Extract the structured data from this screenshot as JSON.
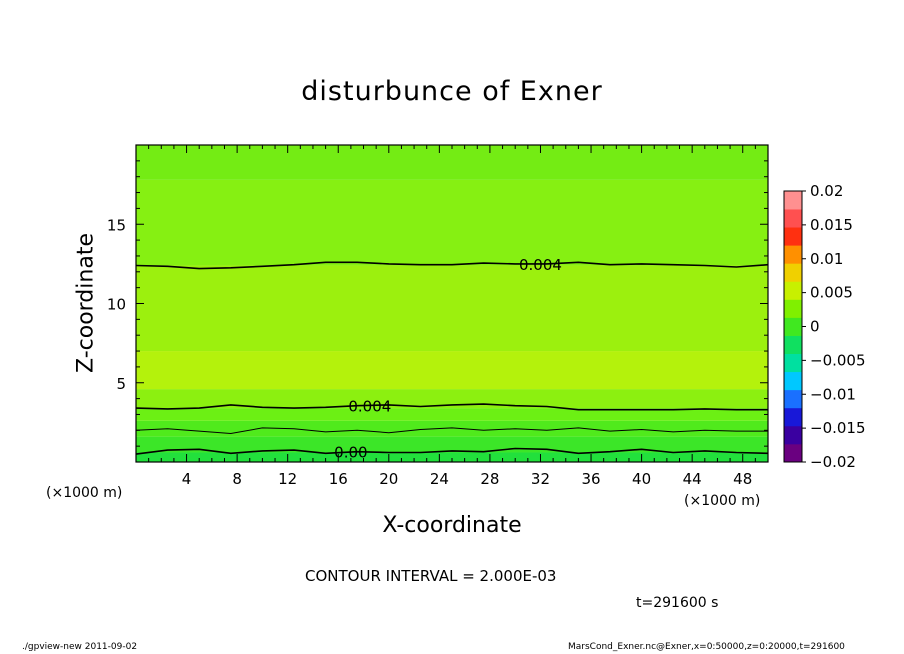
{
  "chart_data": {
    "type": "heatmap",
    "title": "disturbunce of Exner",
    "xlabel": "X-coordinate",
    "ylabel": "Z-coordinate",
    "x_unit": "(×1000 m)",
    "y_unit": "(×1000 m)",
    "xlim": [
      0,
      50
    ],
    "ylim": [
      0,
      20
    ],
    "x_ticks": [
      4,
      8,
      12,
      16,
      20,
      24,
      28,
      32,
      36,
      40,
      44,
      48
    ],
    "y_ticks": [
      5,
      10,
      15
    ],
    "contour_interval": "CONTOUR INTERVAL = 2.000E-03",
    "time": "t=291600 s",
    "colorbar": {
      "min": -0.02,
      "max": 0.02,
      "tick_values": [
        0.02,
        0.015,
        0.01,
        0.005,
        0,
        -0.005,
        -0.01,
        -0.015,
        -0.02
      ],
      "tick_labels": [
        "0.02",
        "0.015",
        "0.01",
        "0.005",
        "0",
        "−0.005",
        "−0.01",
        "−0.015",
        "−0.02"
      ],
      "colors": [
        "#6a0080",
        "#3a00a0",
        "#1818d8",
        "#1a70ff",
        "#00c8ff",
        "#00e0a0",
        "#10e060",
        "#40e820",
        "#80f000",
        "#c8f000",
        "#f0d000",
        "#ff9000",
        "#ff3010",
        "#ff5050",
        "#ff9090"
      ]
    },
    "bands": [
      {
        "z_from": 0,
        "z_to": 0.6,
        "value": 0.0005,
        "color": "#22e03c"
      },
      {
        "z_from": 0.6,
        "z_to": 1.6,
        "value": 0.001,
        "color": "#3ce628"
      },
      {
        "z_from": 1.6,
        "z_to": 2.6,
        "value": 0.002,
        "color": "#50ea1c"
      },
      {
        "z_from": 2.6,
        "z_to": 3.4,
        "value": 0.003,
        "color": "#6cf014"
      },
      {
        "z_from": 3.4,
        "z_to": 4.6,
        "value": 0.005,
        "color": "#8cf010"
      },
      {
        "z_from": 4.6,
        "z_to": 7.0,
        "value": 0.0065,
        "color": "#b4f20c"
      },
      {
        "z_from": 7.0,
        "z_to": 12.4,
        "value": 0.0055,
        "color": "#9cf00e"
      },
      {
        "z_from": 12.4,
        "z_to": 17.8,
        "value": 0.0035,
        "color": "#86f012"
      },
      {
        "z_from": 17.8,
        "z_to": 20,
        "value": 0.002,
        "color": "#74ec14"
      }
    ],
    "contours": [
      {
        "level": 0.004,
        "label": "0.004",
        "z": [
          12.4,
          12.35,
          12.2,
          12.25,
          12.35,
          12.45,
          12.6,
          12.6,
          12.5,
          12.45,
          12.45,
          12.55,
          12.5,
          12.5,
          12.6,
          12.45,
          12.5,
          12.45,
          12.4,
          12.3,
          12.45
        ]
      },
      {
        "level": 0.004,
        "label": "0.004",
        "z": [
          3.4,
          3.35,
          3.4,
          3.6,
          3.45,
          3.4,
          3.45,
          3.55,
          3.6,
          3.5,
          3.6,
          3.65,
          3.55,
          3.5,
          3.3,
          3.3,
          3.3,
          3.3,
          3.35,
          3.3,
          3.3
        ]
      },
      {
        "level": 0.002,
        "label": "",
        "z": [
          2.0,
          2.1,
          1.95,
          1.8,
          2.15,
          2.1,
          1.9,
          2.0,
          1.85,
          2.05,
          2.15,
          2.0,
          2.1,
          2.0,
          2.15,
          1.95,
          2.05,
          1.9,
          2.0,
          1.95,
          1.95
        ]
      },
      {
        "level": 0.0,
        "label": "0.00",
        "z": [
          0.5,
          0.75,
          0.8,
          0.55,
          0.7,
          0.75,
          0.55,
          0.65,
          0.6,
          0.6,
          0.7,
          0.65,
          0.85,
          0.8,
          0.55,
          0.65,
          0.8,
          0.6,
          0.7,
          0.6,
          0.55
        ]
      }
    ]
  },
  "footer": {
    "left": "./gpview-new   2011-09-02",
    "right": "MarsCond_Exner.nc@Exner,x=0:50000,z=0:20000,t=291600"
  }
}
